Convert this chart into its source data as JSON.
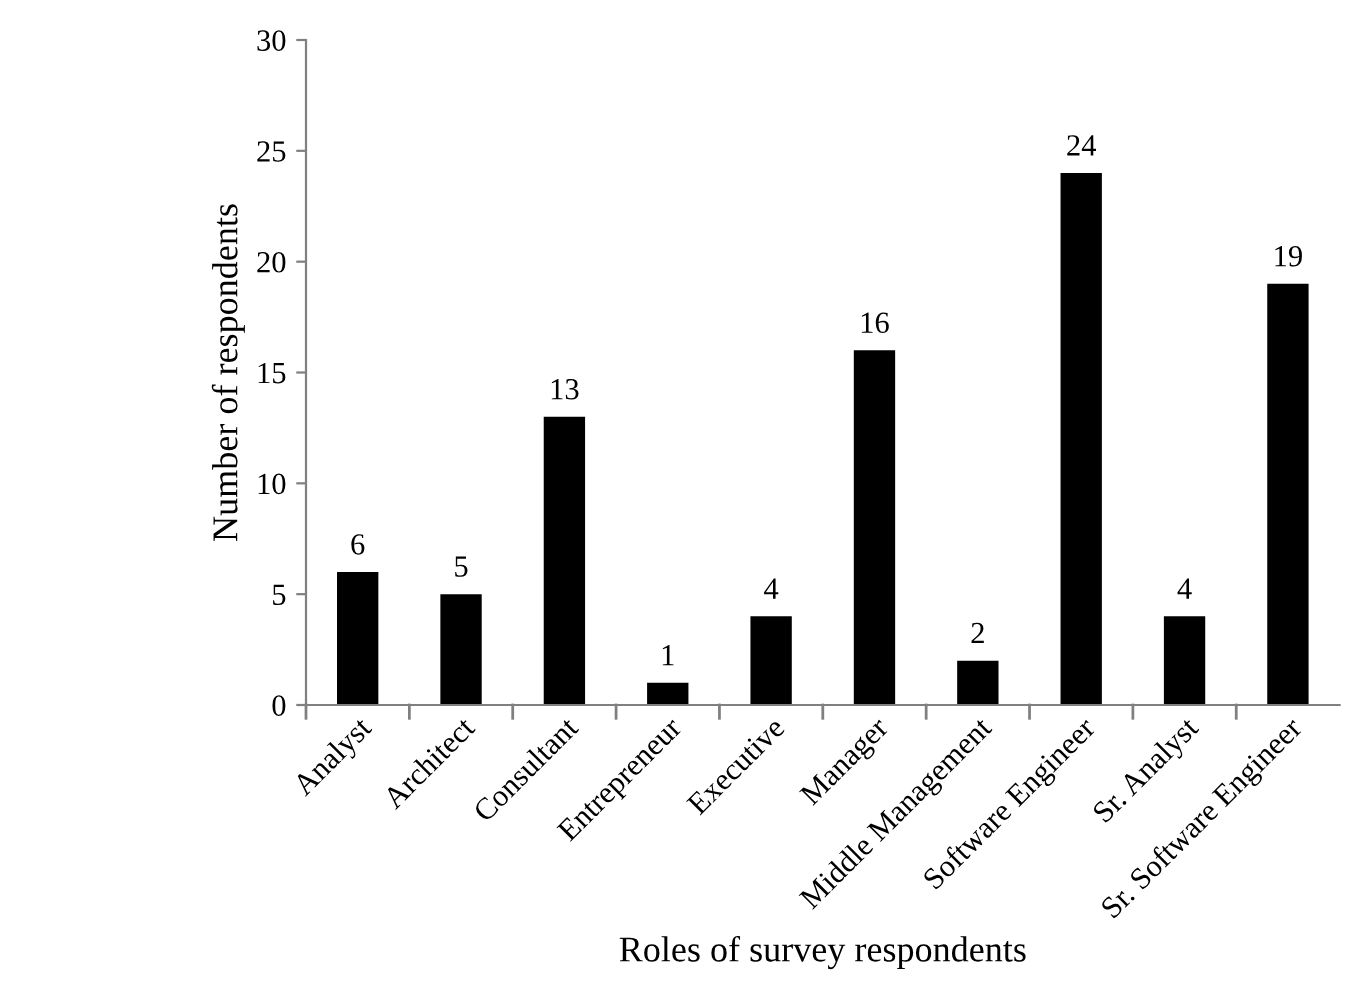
{
  "chart_data": {
    "type": "bar",
    "xlabel": "Roles of survey respondents",
    "ylabel": "Number of respondents",
    "categories": [
      "Analyst",
      "Architect",
      "Consultant",
      "Entrepreneur",
      "Executive",
      "Manager",
      "Middle Management",
      "Software Engineer",
      "Sr. Analyst",
      "Sr. Software Engineer"
    ],
    "values": [
      6,
      5,
      13,
      1,
      4,
      16,
      2,
      24,
      4,
      19
    ],
    "color": "#000000",
    "ylim": [
      0,
      30
    ],
    "yticks": [
      0,
      5,
      10,
      15,
      20,
      25,
      30
    ],
    "grid": false,
    "data_labels": true
  }
}
